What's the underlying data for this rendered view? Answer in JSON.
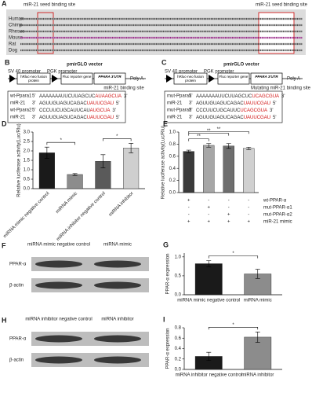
{
  "panel_a": {
    "label": "A",
    "site_labels": [
      "miR-21 seed binding site",
      "miR-21 seed binding site"
    ],
    "species": [
      "Human",
      "Chimp",
      "Rhesus",
      "Mouse",
      "Rat",
      "Dog"
    ]
  },
  "panel_b": {
    "label": "B",
    "vector": "pmirGLO vector",
    "promoters": [
      "SV 40 promoter",
      "PGK promoter"
    ],
    "boxes": [
      "hRluc-neo fusion protein",
      "Fluc reporter gene",
      "PPARA 3'UTR"
    ],
    "tail": "Poly A",
    "note": "miR-21 binding site",
    "rows": [
      {
        "name": "wt-Ppara1",
        "left": "5'",
        "seq": "AAAAAAAUUCUUAGCUC",
        "site": "AUAAGCUA",
        "right": "3'"
      },
      {
        "name": "miR-21",
        "left": "3'",
        "seq": "AGUUGUAGUCAGAC",
        "site": "UAUUCGAU",
        "right": "5'"
      },
      {
        "name": "wt-Ppara2",
        "left": "5'",
        "seq": "CCCUUCUGCAUUCAU",
        "site": "AUGCUA",
        "right": "3'"
      },
      {
        "name": "miR-21",
        "left": "3'",
        "seq": "AGUUGUAGUCAGAC",
        "site": "UAUUCGAU",
        "right": "5'"
      }
    ]
  },
  "panel_c": {
    "label": "C",
    "vector": "pmirGLO vector",
    "promoters": [
      "SV 40 promoter",
      "PGK promoter"
    ],
    "boxes": [
      "hRluc-neo fusion protein",
      "Fluc reporter gene",
      "PPARA 3'UTR"
    ],
    "tail": "Poly A",
    "note": "Mutating miR-21 binding site",
    "rows": [
      {
        "name": "mut-Ppara1",
        "left": "5'",
        "seq": "AAAAAAAUUCUUAGCUC",
        "site": "UCAGCGUA",
        "right": "3'"
      },
      {
        "name": "miR-21",
        "left": "3'",
        "seq": "AGUUGUAGUCAGAC",
        "site": "UAUUCGAU",
        "right": "5'"
      },
      {
        "name": "mut-Ppara2",
        "left": "5'",
        "seq": "CCCUUCUGCAUUC",
        "site": "UCAGCGUA",
        "right": "3'"
      },
      {
        "name": "miR-21",
        "left": "3'",
        "seq": "AGUUGUAGUCAGAC",
        "site": "UAUUCGAU",
        "right": "5'"
      }
    ]
  },
  "panel_f": {
    "label": "F",
    "lanes": [
      "miRNA mimic negative control",
      "miRNA mimic"
    ],
    "rows": [
      "PPAR-α",
      "β-actin"
    ]
  },
  "panel_h": {
    "label": "H",
    "lanes": [
      "miRNA inhibitor negative control",
      "miRNA inhibitor"
    ],
    "rows": [
      "PPAR-α",
      "β-actin"
    ]
  },
  "chart_data": [
    {
      "type": "bar",
      "panel": "D",
      "y_label": "Relative luciferase activity(Luc/Rlu)",
      "categories": [
        "miRNA mimic negative control",
        "miRNA mimic",
        "miRNA inhibitor negative control",
        "miRNA inhibitor"
      ],
      "values": [
        1.9,
        0.75,
        1.45,
        2.15
      ],
      "errors": [
        0.3,
        0.05,
        0.35,
        0.25
      ],
      "colors": [
        "#1a1a1a",
        "#8c8c8c",
        "#5a5a5a",
        "#cfcfcf"
      ],
      "ylim": [
        0,
        3
      ],
      "yticks": [
        {
          "value": 0,
          "label": "0.0"
        },
        {
          "value": 0.5,
          "label": "0.5"
        },
        {
          "value": 1,
          "label": "1.0"
        },
        {
          "value": 1.5,
          "label": "1.5"
        },
        {
          "value": 2,
          "label": "2.0"
        },
        {
          "value": 2.5,
          "label": "2.5"
        },
        {
          "value": 3,
          "label": "3.0"
        }
      ],
      "annotations": [
        "*",
        "*"
      ]
    },
    {
      "type": "bar",
      "panel": "E",
      "y_label": "Relative luciferase activity(Luc/Rlu)",
      "categories": [
        null,
        null,
        null,
        null
      ],
      "values": [
        0.68,
        0.78,
        0.77,
        0.73
      ],
      "errors": [
        0.02,
        0.03,
        0.04,
        0.02
      ],
      "colors": [
        "#3a3a3a",
        "#a6a6a6",
        "#6e6e6e",
        "#d0d0d0"
      ],
      "ylim": [
        0,
        1
      ],
      "yticks": [
        {
          "value": 0,
          "label": "0.0"
        },
        {
          "value": 0.2,
          "label": "0.2"
        },
        {
          "value": 0.4,
          "label": "0.4"
        },
        {
          "value": 0.6,
          "label": "0.6"
        },
        {
          "value": 0.8,
          "label": "0.8"
        },
        {
          "value": 1,
          "label": "1.0"
        }
      ],
      "annotations": [
        "**",
        "**",
        "**"
      ],
      "conditions": [
        {
          "label": "wt-PPAR-α",
          "marks": [
            "+",
            "-",
            "-",
            "-"
          ]
        },
        {
          "label": "mut-PPAR-α1",
          "marks": [
            "-",
            "+",
            "-",
            "-"
          ]
        },
        {
          "label": "mut-PPAR-α2",
          "marks": [
            "-",
            "-",
            "+",
            "-"
          ]
        },
        {
          "label": "miR-21 mimic",
          "marks": [
            "+",
            "+",
            "+",
            "+"
          ]
        }
      ]
    },
    {
      "type": "bar",
      "panel": "G",
      "y_label": "PPAR-α expression",
      "categories": [
        "miRNA mimic negative control",
        "miRNA mimic"
      ],
      "values": [
        0.82,
        0.55
      ],
      "errors": [
        0.08,
        0.12
      ],
      "colors": [
        "#1a1a1a",
        "#8c8c8c"
      ],
      "ylim": [
        0,
        1.1
      ],
      "yticks": [
        {
          "value": 0,
          "label": "0.0"
        },
        {
          "value": 0.5,
          "label": "0.5"
        },
        {
          "value": 1,
          "label": "1.0"
        }
      ],
      "annotations": [
        "*"
      ]
    },
    {
      "type": "bar",
      "panel": "I",
      "y_label": "PPAR-α expression",
      "categories": [
        "miRNA inhibitor negative control",
        "miRNA inhibitor"
      ],
      "values": [
        0.25,
        0.62
      ],
      "errors": [
        0.08,
        0.1
      ],
      "colors": [
        "#1a1a1a",
        "#8c8c8c"
      ],
      "ylim": [
        0,
        0.8
      ],
      "yticks": [
        {
          "value": 0,
          "label": "0.0"
        },
        {
          "value": 0.2,
          "label": "0.2"
        },
        {
          "value": 0.4,
          "label": "0.4"
        },
        {
          "value": 0.6,
          "label": "0.6"
        },
        {
          "value": 0.8,
          "label": "0.8"
        }
      ],
      "annotations": [
        "*"
      ]
    }
  ]
}
